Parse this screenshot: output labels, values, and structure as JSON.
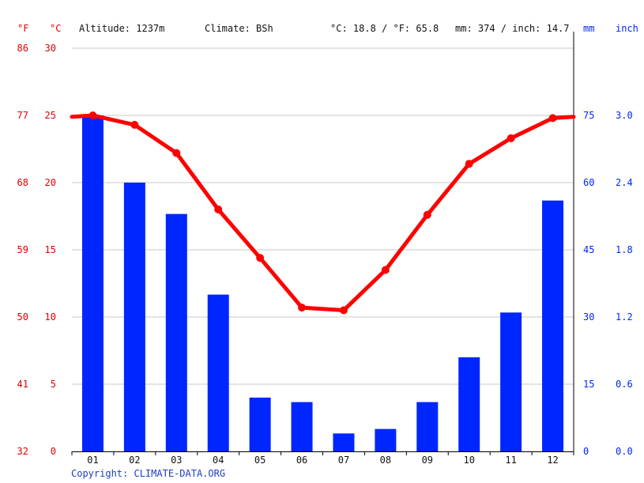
{
  "header": {
    "unit_f": "°F",
    "unit_c": "°C",
    "altitude": "Altitude: 1237m",
    "climate": "Climate: BSh",
    "temp_avg": "°C: 18.8 / °F: 65.8",
    "precip_total": "mm: 374 / inch: 14.7",
    "unit_mm": "mm",
    "unit_inch": "inch"
  },
  "copyright": "Copyright: CLIMATE-DATA.ORG",
  "colors": {
    "temperature": "#ff0000",
    "precipitation": "#0026ff",
    "temp_axis": "#e10000",
    "precip_axis": "#0026ff",
    "grid": "#c8c8c8"
  },
  "chart_data": {
    "type": "bar",
    "categories": [
      "01",
      "02",
      "03",
      "04",
      "05",
      "06",
      "07",
      "08",
      "09",
      "10",
      "11",
      "12"
    ],
    "series": [
      {
        "type": "bar",
        "axis": "right",
        "unit": "mm",
        "values": [
          75,
          60,
          53,
          35,
          12,
          11,
          4,
          5,
          11,
          21,
          31,
          56
        ]
      },
      {
        "type": "line",
        "axis": "left",
        "unit": "°C",
        "values": [
          25.0,
          24.3,
          22.2,
          18.0,
          14.4,
          10.7,
          10.5,
          13.5,
          17.6,
          21.4,
          23.3,
          24.8
        ]
      }
    ],
    "y_left_celsius": {
      "range": [
        0,
        30
      ],
      "ticks": [
        "0",
        "5",
        "10",
        "15",
        "20",
        "25",
        "30"
      ]
    },
    "y_left_fahrenheit": {
      "ticks": [
        "32",
        "41",
        "50",
        "59",
        "68",
        "77",
        "86"
      ]
    },
    "y_right_mm": {
      "range": [
        0,
        90
      ],
      "ticks": [
        "0",
        "15",
        "30",
        "45",
        "60",
        "75"
      ]
    },
    "y_right_inch": {
      "ticks": [
        "0.0",
        "0.6",
        "1.2",
        "1.8",
        "2.4",
        "3.0"
      ]
    },
    "grid": true
  }
}
